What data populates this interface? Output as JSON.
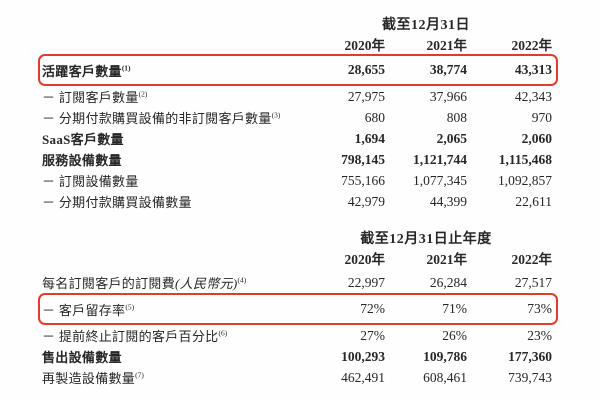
{
  "page": {
    "background": "#fefefe",
    "text_color": "#272727",
    "annotation_color": "#e23a2b"
  },
  "tables": [
    {
      "period_header": "截至12月31日",
      "year_headers": [
        "2020年",
        "2021年",
        "2022年"
      ],
      "rows": [
        {
          "label": "活躍客戶數量",
          "sup": "(1)",
          "bold": true,
          "highlighted": true,
          "values": [
            "28,655",
            "38,774",
            "43,313"
          ]
        },
        {
          "label": "－ 訂閱客戶數量",
          "sup": "(2)",
          "bold": false,
          "highlighted": false,
          "values": [
            "27,975",
            "37,966",
            "42,343"
          ]
        },
        {
          "label": "－ 分期付款購買設備的非訂閱客戶數量",
          "sup": "(3)",
          "bold": false,
          "highlighted": false,
          "values": [
            "680",
            "808",
            "970"
          ]
        },
        {
          "label": "SaaS客戶數量",
          "sup": "",
          "bold": true,
          "highlighted": false,
          "values": [
            "1,694",
            "2,065",
            "2,060"
          ]
        },
        {
          "label": "服務設備數量",
          "sup": "",
          "bold": true,
          "highlighted": false,
          "values": [
            "798,145",
            "1,121,744",
            "1,115,468"
          ]
        },
        {
          "label": "－ 訂閱設備數量",
          "sup": "",
          "bold": false,
          "highlighted": false,
          "values": [
            "755,166",
            "1,077,345",
            "1,092,857"
          ]
        },
        {
          "label": "－ 分期付款購買設備數量",
          "sup": "",
          "bold": false,
          "highlighted": false,
          "values": [
            "42,979",
            "44,399",
            "22,611"
          ]
        }
      ]
    },
    {
      "period_header": "截至12月31日止年度",
      "year_headers": [
        "2020年",
        "2021年",
        "2022年"
      ],
      "rows": [
        {
          "label": "每名訂閱客戶的訂閱費",
          "label_italic": "(人民幣元)",
          "sup": "(4)",
          "bold": false,
          "highlighted": false,
          "values": [
            "22,997",
            "26,284",
            "27,517"
          ]
        },
        {
          "label": "－ 客戶留存率",
          "sup": "(5)",
          "bold": false,
          "highlighted": true,
          "values": [
            "72%",
            "71%",
            "73%"
          ]
        },
        {
          "label": "－ 提前終止訂閱的客戶百分比",
          "sup": "(6)",
          "bold": false,
          "highlighted": false,
          "values": [
            "27%",
            "26%",
            "23%"
          ]
        },
        {
          "label": "售出設備數量",
          "sup": "",
          "bold": true,
          "highlighted": false,
          "values": [
            "100,293",
            "109,786",
            "177,360"
          ]
        },
        {
          "label": "再製造設備數量",
          "sup": "(7)",
          "bold": false,
          "highlighted": false,
          "values": [
            "462,491",
            "608,461",
            "739,743"
          ]
        }
      ]
    }
  ]
}
